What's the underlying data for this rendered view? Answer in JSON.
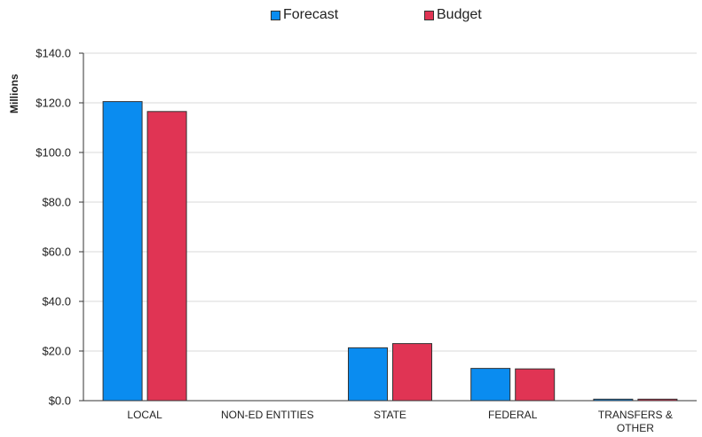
{
  "chart_data": {
    "type": "bar",
    "title": "",
    "xlabel": "",
    "ylabel": "Millions",
    "categories": [
      "LOCAL",
      "NON-ED ENTITIES",
      "STATE",
      "FEDERAL",
      "TRANSFERS & OTHER"
    ],
    "category_lines": [
      [
        "LOCAL"
      ],
      [
        "NON-ED ENTITIES"
      ],
      [
        "STATE"
      ],
      [
        "FEDERAL"
      ],
      [
        "TRANSFERS &",
        "OTHER"
      ]
    ],
    "series": [
      {
        "name": "Forecast",
        "color": "#0A8CF0",
        "values": [
          120.5,
          0,
          21.3,
          13.0,
          0.6
        ]
      },
      {
        "name": "Budget",
        "color": "#E03454",
        "values": [
          116.5,
          0,
          23.0,
          12.8,
          0.6
        ]
      }
    ],
    "ylim": [
      0,
      140
    ],
    "yticks": [
      0,
      20,
      40,
      60,
      80,
      100,
      120,
      140
    ],
    "ytick_labels": [
      "$0.0",
      "$20.0",
      "$40.0",
      "$60.0",
      "$80.0",
      "$100.0",
      "$120.0",
      "$140.0"
    ],
    "grid": true,
    "legend_position": "top-center"
  }
}
